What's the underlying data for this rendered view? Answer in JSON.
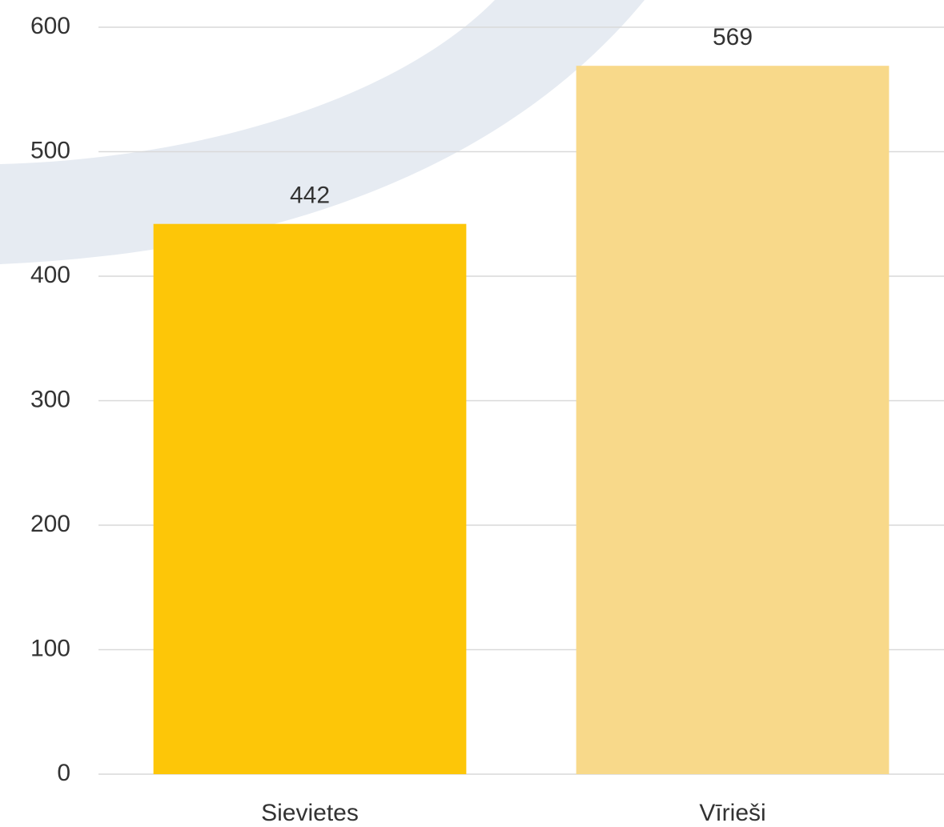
{
  "chart_data": {
    "type": "bar",
    "categories": [
      "Sievietes",
      "Vīrieši"
    ],
    "values": [
      442,
      569
    ],
    "colors": [
      "#fdc608",
      "#f8d98a"
    ],
    "ylim": [
      0,
      600
    ],
    "yticks": [
      0,
      100,
      200,
      300,
      400,
      500,
      600
    ],
    "grid": true
  }
}
